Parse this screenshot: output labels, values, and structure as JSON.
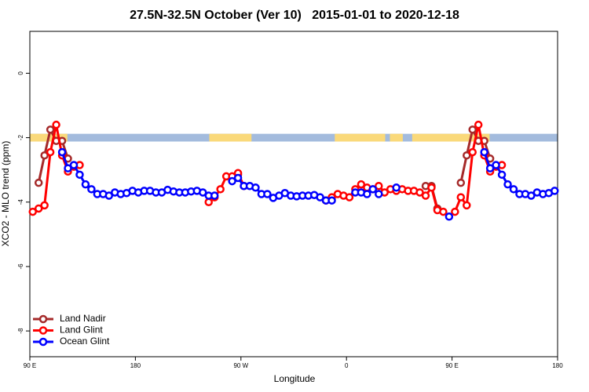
{
  "chart_data": {
    "type": "line",
    "title": "27.5N-32.5N October (Ver 10)   2015-01-01 to 2020-12-18",
    "xlabel": "Longitude",
    "ylabel": "XCO2 - MLO trend (ppm)",
    "xlim": [
      90,
      540
    ],
    "ylim": [
      -8.8,
      1.3
    ],
    "xticks": [
      {
        "value": 90,
        "label": "90 E"
      },
      {
        "value": 180,
        "label": "180"
      },
      {
        "value": 270,
        "label": "90 W"
      },
      {
        "value": 360,
        "label": "0"
      },
      {
        "value": 450,
        "label": "90 E"
      },
      {
        "value": 540,
        "label": "180"
      }
    ],
    "yticks": [
      -8,
      -6,
      -4,
      -2,
      0
    ],
    "legend": "bottom-left",
    "land_band": {
      "range": [
        -2.12,
        -1.88
      ],
      "color": "#a3bbdd",
      "land_color": "#fad97a",
      "land": [
        [
          90,
          122
        ],
        [
          243,
          279
        ],
        [
          350,
          393
        ],
        [
          397,
          408
        ],
        [
          416,
          482
        ]
      ]
    },
    "x": [
      92.5,
      97.5,
      102.5,
      107.5,
      112.5,
      117.5,
      122.5,
      127.5,
      132.5,
      137.5,
      142.5,
      147.5,
      152.5,
      157.5,
      162.5,
      167.5,
      172.5,
      177.5,
      182.5,
      187.5,
      192.5,
      197.5,
      202.5,
      207.5,
      212.5,
      217.5,
      222.5,
      227.5,
      232.5,
      237.5,
      242.5,
      247.5,
      252.5,
      257.5,
      262.5,
      267.5,
      272.5,
      277.5,
      282.5,
      287.5,
      292.5,
      297.5,
      302.5,
      307.5,
      312.5,
      317.5,
      322.5,
      327.5,
      332.5,
      337.5,
      342.5,
      347.5,
      352.5,
      357.5,
      362.5,
      367.5,
      372.5,
      377.5,
      382.5,
      387.5,
      392.5,
      397.5,
      402.5,
      407.5,
      412.5,
      417.5,
      422.5,
      427.5,
      432.5,
      437.5,
      442.5,
      447.5,
      452.5,
      457.5,
      462.5,
      467.5,
      472.5,
      477.5,
      482.5,
      487.5,
      492.5,
      497.5,
      502.5,
      507.5,
      512.5,
      517.5,
      522.5,
      527.5,
      532.5,
      537.5
    ],
    "series": [
      {
        "name": "Land Nadir",
        "color": "#a52a2a",
        "values": [
          null,
          -3.4,
          -2.55,
          -1.75,
          -2.1,
          -2.1,
          -2.65,
          null,
          null,
          null,
          null,
          null,
          null,
          null,
          null,
          null,
          null,
          null,
          null,
          null,
          null,
          null,
          null,
          null,
          null,
          null,
          null,
          null,
          null,
          null,
          null,
          null,
          null,
          null,
          -3.3,
          -3.15,
          null,
          null,
          null,
          null,
          null,
          null,
          null,
          null,
          null,
          null,
          null,
          null,
          null,
          null,
          -3.95,
          null,
          null,
          null,
          null,
          null,
          null,
          null,
          null,
          null,
          null,
          null,
          null,
          null,
          null,
          null,
          null,
          -3.5,
          -3.5,
          -4.2,
          null,
          null,
          null,
          -3.4,
          -2.55,
          -1.75,
          -2.1,
          -2.1,
          -2.65,
          null,
          null,
          null,
          null,
          null,
          null,
          null,
          null,
          null,
          null,
          null
        ]
      },
      {
        "name": "Land Glint",
        "color": "#ff0000",
        "values": [
          -4.3,
          -4.2,
          -4.1,
          -2.45,
          -1.6,
          -2.55,
          -3.05,
          -2.9,
          -2.85,
          null,
          null,
          null,
          null,
          null,
          null,
          null,
          null,
          null,
          null,
          null,
          null,
          null,
          null,
          null,
          null,
          null,
          null,
          null,
          null,
          null,
          -4.0,
          -3.85,
          -3.6,
          -3.2,
          -3.2,
          -3.1,
          -3.5,
          null,
          null,
          null,
          null,
          null,
          null,
          null,
          null,
          null,
          null,
          null,
          null,
          null,
          -3.95,
          -3.85,
          -3.75,
          -3.8,
          -3.85,
          -3.6,
          -3.45,
          -3.55,
          -3.6,
          -3.5,
          -3.7,
          -3.6,
          -3.65,
          -3.6,
          -3.65,
          -3.65,
          -3.7,
          -3.8,
          -3.55,
          -4.25,
          -4.3,
          null,
          -4.3,
          -3.85,
          -4.1,
          -2.45,
          -1.6,
          -2.55,
          -3.05,
          -2.9,
          -2.85,
          null,
          null,
          null,
          null,
          null,
          null,
          null,
          null,
          null
        ]
      },
      {
        "name": "Ocean Glint",
        "color": "#0000ff",
        "values": [
          null,
          null,
          null,
          null,
          null,
          -2.45,
          -2.95,
          -2.85,
          -3.15,
          -3.45,
          -3.6,
          -3.75,
          -3.75,
          -3.8,
          -3.7,
          -3.75,
          -3.72,
          -3.65,
          -3.7,
          -3.65,
          -3.65,
          -3.7,
          -3.7,
          -3.62,
          -3.67,
          -3.7,
          -3.7,
          -3.67,
          -3.65,
          -3.7,
          -3.8,
          -3.8,
          null,
          null,
          -3.35,
          -3.25,
          -3.5,
          -3.5,
          -3.55,
          -3.75,
          -3.75,
          -3.87,
          -3.8,
          -3.72,
          -3.8,
          -3.82,
          -3.8,
          -3.8,
          -3.78,
          -3.85,
          -3.95,
          -3.95,
          null,
          null,
          null,
          -3.7,
          -3.7,
          -3.75,
          -3.6,
          -3.75,
          null,
          null,
          -3.55,
          null,
          null,
          null,
          null,
          null,
          null,
          null,
          null,
          -4.45,
          null,
          null,
          null,
          null,
          null,
          -2.45,
          -2.95,
          -2.85,
          -3.15,
          -3.45,
          -3.6,
          -3.75,
          -3.75,
          -3.8,
          -3.7,
          -3.75,
          -3.72,
          -3.65
        ]
      }
    ]
  }
}
